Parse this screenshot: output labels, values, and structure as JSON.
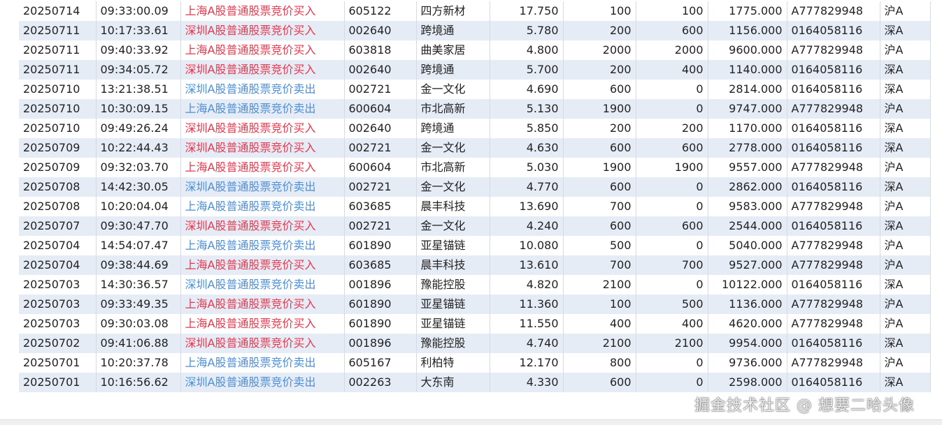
{
  "colors": {
    "buy": "#e8364d",
    "sell": "#4a8fd8",
    "stripe": "#e6ecf6"
  },
  "rows": [
    [
      "20250714",
      "09:33:00.09",
      "上海A股普通股票竞价买入",
      "605122",
      "四方新材",
      "17.750",
      "100",
      "100",
      "1775.000",
      "A777829948",
      "沪A"
    ],
    [
      "20250711",
      "10:17:33.61",
      "深圳A股普通股票竞价买入",
      "002640",
      "跨境通",
      "5.780",
      "200",
      "600",
      "1156.000",
      "0164058116",
      "深A"
    ],
    [
      "20250711",
      "09:40:33.92",
      "上海A股普通股票竞价买入",
      "603818",
      "曲美家居",
      "4.800",
      "2000",
      "2000",
      "9600.000",
      "A777829948",
      "沪A"
    ],
    [
      "20250711",
      "09:34:05.72",
      "深圳A股普通股票竞价买入",
      "002640",
      "跨境通",
      "5.700",
      "200",
      "400",
      "1140.000",
      "0164058116",
      "深A"
    ],
    [
      "20250710",
      "13:21:38.51",
      "深圳A股普通股票竞价卖出",
      "002721",
      "金一文化",
      "4.690",
      "600",
      "0",
      "2814.000",
      "0164058116",
      "深A"
    ],
    [
      "20250710",
      "10:30:09.15",
      "上海A股普通股票竞价卖出",
      "600604",
      "市北高新",
      "5.130",
      "1900",
      "0",
      "9747.000",
      "A777829948",
      "沪A"
    ],
    [
      "20250710",
      "09:49:26.24",
      "深圳A股普通股票竞价买入",
      "002640",
      "跨境通",
      "5.850",
      "200",
      "200",
      "1170.000",
      "0164058116",
      "深A"
    ],
    [
      "20250709",
      "10:22:44.43",
      "深圳A股普通股票竞价买入",
      "002721",
      "金一文化",
      "4.630",
      "600",
      "600",
      "2778.000",
      "0164058116",
      "深A"
    ],
    [
      "20250709",
      "09:32:03.70",
      "上海A股普通股票竞价买入",
      "600604",
      "市北高新",
      "5.030",
      "1900",
      "1900",
      "9557.000",
      "A777829948",
      "沪A"
    ],
    [
      "20250708",
      "14:42:30.05",
      "深圳A股普通股票竞价卖出",
      "002721",
      "金一文化",
      "4.770",
      "600",
      "0",
      "2862.000",
      "0164058116",
      "深A"
    ],
    [
      "20250708",
      "10:20:04.04",
      "上海A股普通股票竞价卖出",
      "603685",
      "晨丰科技",
      "13.690",
      "700",
      "0",
      "9583.000",
      "A777829948",
      "沪A"
    ],
    [
      "20250707",
      "09:30:47.70",
      "深圳A股普通股票竞价买入",
      "002721",
      "金一文化",
      "4.240",
      "600",
      "600",
      "2544.000",
      "0164058116",
      "深A"
    ],
    [
      "20250704",
      "14:54:07.47",
      "上海A股普通股票竞价卖出",
      "601890",
      "亚星锚链",
      "10.080",
      "500",
      "0",
      "5040.000",
      "A777829948",
      "沪A"
    ],
    [
      "20250704",
      "09:38:44.69",
      "上海A股普通股票竞价买入",
      "603685",
      "晨丰科技",
      "13.610",
      "700",
      "700",
      "9527.000",
      "A777829948",
      "沪A"
    ],
    [
      "20250703",
      "14:30:36.57",
      "深圳A股普通股票竞价卖出",
      "001896",
      "豫能控股",
      "4.820",
      "2100",
      "0",
      "10122.000",
      "0164058116",
      "深A"
    ],
    [
      "20250703",
      "09:33:49.35",
      "上海A股普通股票竞价买入",
      "601890",
      "亚星锚链",
      "11.360",
      "100",
      "500",
      "1136.000",
      "A777829948",
      "沪A"
    ],
    [
      "20250703",
      "09:30:03.08",
      "上海A股普通股票竞价买入",
      "601890",
      "亚星锚链",
      "11.550",
      "400",
      "400",
      "4620.000",
      "A777829948",
      "沪A"
    ],
    [
      "20250702",
      "09:41:06.88",
      "深圳A股普通股票竞价买入",
      "001896",
      "豫能控股",
      "4.740",
      "2100",
      "2100",
      "9954.000",
      "0164058116",
      "深A"
    ],
    [
      "20250701",
      "10:20:37.78",
      "上海A股普通股票竞价卖出",
      "605167",
      "利柏特",
      "12.170",
      "800",
      "0",
      "9736.000",
      "A777829948",
      "沪A"
    ],
    [
      "20250701",
      "10:16:56.62",
      "深圳A股普通股票竞价卖出",
      "002263",
      "大东南",
      "4.330",
      "600",
      "0",
      "2598.000",
      "0164058116",
      "深A"
    ]
  ],
  "watermark": "掘金技术社区 @ 想要二哈头像"
}
